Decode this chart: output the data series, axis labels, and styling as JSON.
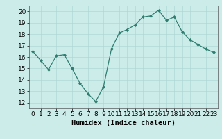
{
  "x": [
    0,
    1,
    2,
    3,
    4,
    5,
    6,
    7,
    8,
    9,
    10,
    11,
    12,
    13,
    14,
    15,
    16,
    17,
    18,
    19,
    20,
    21,
    22,
    23
  ],
  "y": [
    16.5,
    15.7,
    14.9,
    16.1,
    16.2,
    15.0,
    13.7,
    12.8,
    12.1,
    13.4,
    16.7,
    18.1,
    18.4,
    18.8,
    19.5,
    19.6,
    20.1,
    19.2,
    19.5,
    18.2,
    17.5,
    17.1,
    16.7,
    16.4
  ],
  "xlim": [
    -0.5,
    23.5
  ],
  "ylim": [
    11.5,
    20.5
  ],
  "yticks": [
    12,
    13,
    14,
    15,
    16,
    17,
    18,
    19,
    20
  ],
  "xticks": [
    0,
    1,
    2,
    3,
    4,
    5,
    6,
    7,
    8,
    9,
    10,
    11,
    12,
    13,
    14,
    15,
    16,
    17,
    18,
    19,
    20,
    21,
    22,
    23
  ],
  "xlabel": "Humidex (Indice chaleur)",
  "line_color": "#2e7d6e",
  "marker_color": "#2e7d6e",
  "bg_color": "#ccecea",
  "grid_color": "#aed8d5",
  "tick_label_fontsize": 6.5,
  "xlabel_fontsize": 7.5
}
